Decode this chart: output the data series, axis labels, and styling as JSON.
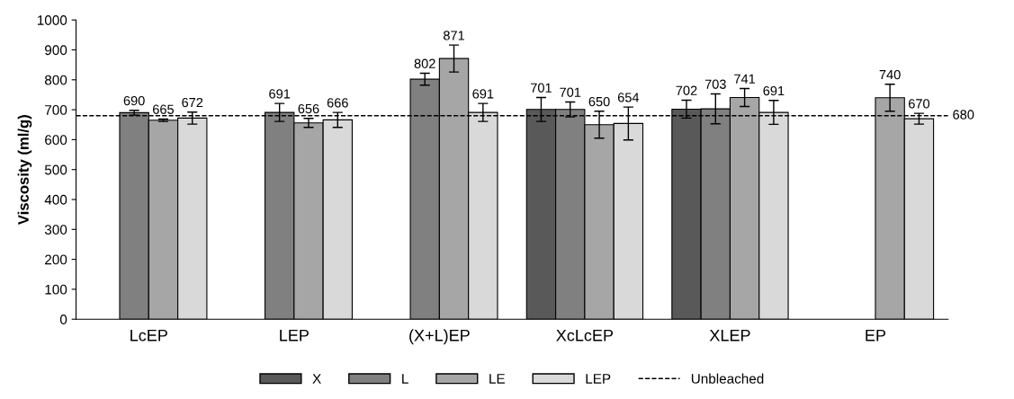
{
  "chart_data": {
    "type": "bar",
    "ylabel": "Viscosity (ml/g)",
    "categories": [
      "LcEP",
      "LEP",
      "(X+L)EP",
      "XcLcEP",
      "XLEP",
      "EP"
    ],
    "series": [
      {
        "name": "X",
        "color": "#595959",
        "values": [
          null,
          null,
          null,
          701,
          702,
          null
        ],
        "errors": [
          null,
          null,
          null,
          40,
          30,
          null
        ]
      },
      {
        "name": "L",
        "color": "#808080",
        "values": [
          690,
          691,
          802,
          701,
          703,
          null
        ],
        "errors": [
          8,
          30,
          20,
          25,
          50,
          null
        ]
      },
      {
        "name": "LE",
        "color": "#a6a6a6",
        "values": [
          665,
          656,
          871,
          650,
          741,
          740
        ],
        "errors": [
          4,
          15,
          45,
          45,
          30,
          45
        ]
      },
      {
        "name": "LEP",
        "color": "#d9d9d9",
        "values": [
          672,
          666,
          691,
          654,
          691,
          670
        ],
        "errors": [
          20,
          25,
          30,
          55,
          40,
          18
        ]
      }
    ],
    "ylim": [
      0,
      1000
    ],
    "yticks": [
      0,
      100,
      200,
      300,
      400,
      500,
      600,
      700,
      800,
      900,
      1000
    ],
    "ref_lines": [
      {
        "axis": "y",
        "value": 680,
        "label": "Unbleached",
        "color": "#000000",
        "line_style": "dashed"
      }
    ],
    "annotations": [
      "680"
    ],
    "data_labels": true,
    "legend": "bottom",
    "grid": false
  }
}
